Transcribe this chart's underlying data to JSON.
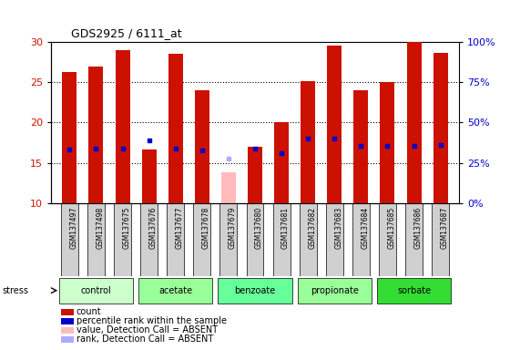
{
  "title": "GDS2925 / 6111_at",
  "samples": [
    "GSM137497",
    "GSM137498",
    "GSM137675",
    "GSM137676",
    "GSM137677",
    "GSM137678",
    "GSM137679",
    "GSM137680",
    "GSM137681",
    "GSM137682",
    "GSM137683",
    "GSM137684",
    "GSM137685",
    "GSM137686",
    "GSM137687"
  ],
  "count_values": [
    26.3,
    27.0,
    29.0,
    16.7,
    28.5,
    24.0,
    null,
    17.0,
    20.0,
    25.1,
    29.5,
    24.0,
    25.0,
    30.0,
    28.7
  ],
  "rank_values": [
    16.7,
    16.8,
    16.8,
    17.8,
    16.8,
    16.5,
    null,
    16.8,
    16.2,
    18.0,
    18.0,
    17.1,
    17.1,
    17.1,
    17.2
  ],
  "absent_count": [
    null,
    null,
    null,
    null,
    null,
    null,
    13.8,
    null,
    null,
    null,
    null,
    null,
    null,
    null,
    null
  ],
  "absent_rank": [
    null,
    null,
    null,
    null,
    null,
    null,
    15.5,
    null,
    null,
    null,
    null,
    null,
    null,
    null,
    null
  ],
  "groups": [
    {
      "label": "control",
      "start": 0,
      "end": 2,
      "color": "#ccffcc"
    },
    {
      "label": "acetate",
      "start": 3,
      "end": 5,
      "color": "#99ff99"
    },
    {
      "label": "benzoate",
      "start": 6,
      "end": 8,
      "color": "#66ff99"
    },
    {
      "label": "propionate",
      "start": 9,
      "end": 11,
      "color": "#99ff99"
    },
    {
      "label": "sorbate",
      "start": 12,
      "end": 14,
      "color": "#33dd33"
    }
  ],
  "sample_bg_color": "#d0d0d0",
  "ylim": [
    10,
    30
  ],
  "y2lim": [
    0,
    100
  ],
  "yticks": [
    10,
    15,
    20,
    25,
    30
  ],
  "y2ticks": [
    0,
    25,
    50,
    75,
    100
  ],
  "y2ticklabels": [
    "0%",
    "25%",
    "50%",
    "75%",
    "100%"
  ],
  "bar_color": "#cc1100",
  "rank_color": "#0000cc",
  "absent_bar_color": "#ffbbbb",
  "absent_rank_color": "#aaaaff",
  "bar_width": 0.55,
  "legend_items": [
    {
      "label": "count",
      "color": "#cc1100"
    },
    {
      "label": "percentile rank within the sample",
      "color": "#0000cc"
    },
    {
      "label": "value, Detection Call = ABSENT",
      "color": "#ffbbbb"
    },
    {
      "label": "rank, Detection Call = ABSENT",
      "color": "#aaaaff"
    }
  ]
}
